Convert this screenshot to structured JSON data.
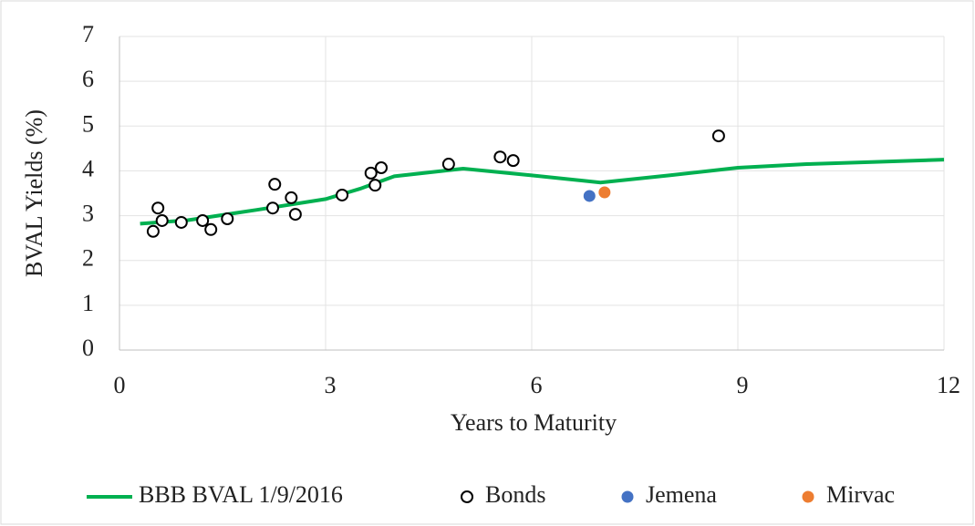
{
  "chart_data": {
    "type": "scatter",
    "x_label": "Years to Maturity",
    "y_label": "BVAL Yields (%)",
    "xlim": [
      0,
      12
    ],
    "xticks": [
      0,
      3,
      6,
      9,
      12
    ],
    "ylim": [
      0,
      7
    ],
    "yticks": [
      0,
      1,
      2,
      3,
      4,
      5,
      6,
      7
    ],
    "grid": true,
    "legend": "bottom",
    "series": [
      {
        "name": "BBB BVAL 1/9/2016",
        "color": "#00b050",
        "line": true,
        "x": [
          0.3,
          1,
          2,
          3,
          3.5,
          4,
          5,
          6,
          7,
          8,
          9,
          10,
          11,
          12
        ],
        "values": [
          2.82,
          2.9,
          3.13,
          3.37,
          3.6,
          3.88,
          4.05,
          3.9,
          3.74,
          3.9,
          4.07,
          4.15,
          4.2,
          4.25
        ]
      },
      {
        "name": "Bonds",
        "color": "#000000",
        "hollow": true,
        "x": [
          0.49,
          0.56,
          0.62,
          0.9,
          1.21,
          1.33,
          1.57,
          2.23,
          2.26,
          2.5,
          2.56,
          3.24,
          3.66,
          3.72,
          3.81,
          4.79,
          5.54,
          5.73,
          8.72
        ],
        "values": [
          2.65,
          3.17,
          2.89,
          2.85,
          2.89,
          2.69,
          2.93,
          3.17,
          3.7,
          3.4,
          3.03,
          3.46,
          3.95,
          3.68,
          4.07,
          4.15,
          4.31,
          4.23,
          4.78
        ]
      },
      {
        "name": "Jemena",
        "color": "#4472c4",
        "x": [
          6.84
        ],
        "values": [
          3.44
        ]
      },
      {
        "name": "Mirvac",
        "color": "#ed7d31",
        "x": [
          7.06
        ],
        "values": [
          3.52
        ]
      }
    ]
  }
}
